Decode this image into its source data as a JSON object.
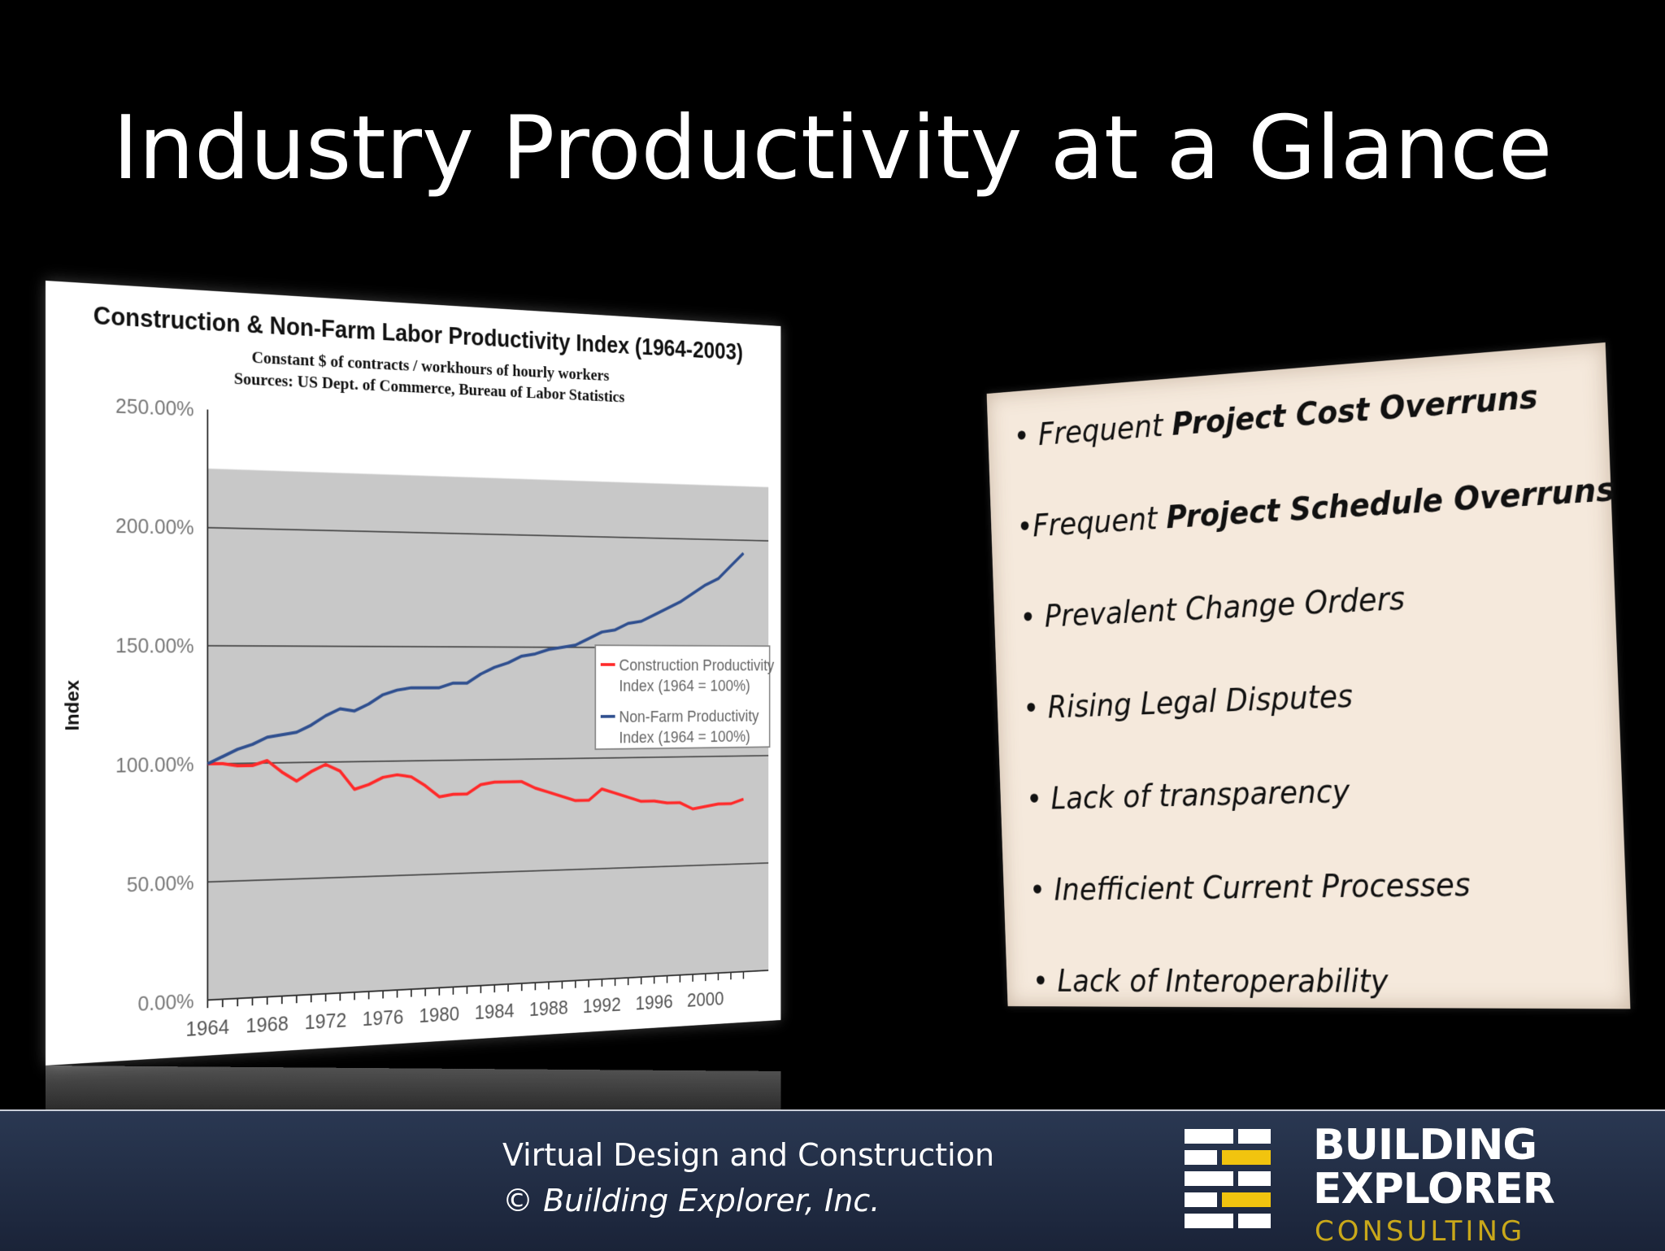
{
  "slide": {
    "title": "Industry Productivity at a Glance"
  },
  "bullets": [
    {
      "pre": "• Frequent ",
      "bold": "Project Cost Overruns",
      "post": ""
    },
    {
      "pre": "•Frequent  ",
      "bold": "Project Schedule Overruns",
      "post": ""
    },
    {
      "pre": "• Prevalent Change Orders",
      "bold": "",
      "post": ""
    },
    {
      "pre": "• Rising Legal Disputes",
      "bold": "",
      "post": ""
    },
    {
      "pre": "• Lack of transparency",
      "bold": "",
      "post": ""
    },
    {
      "pre": "• Inefficient Current Processes",
      "bold": "",
      "post": ""
    },
    {
      "pre": "• Lack of Interoperability",
      "bold": "",
      "post": ""
    }
  ],
  "footer": {
    "line1": "Virtual Design and Construction",
    "line2": "© Building Explorer, Inc.",
    "logo_word1": "BUILDING",
    "logo_word2": "EXPLORER",
    "logo_word3": "CONSULTING",
    "colors": {
      "bar": "#ffffff",
      "accent": "#f1c40f",
      "text_accent": "#c9a81a"
    }
  },
  "chart_data": {
    "type": "line",
    "title": "Construction & Non-Farm Labor Productivity Index (1964-2003)",
    "subtitle": [
      "Constant $ of contracts / workhours of hourly workers",
      "Sources: US Dept. of Commerce, Bureau of Labor Statistics"
    ],
    "ylabel": "Index",
    "xlabel": "",
    "ylim": [
      0,
      250
    ],
    "yticks": [
      "0.00%",
      "50.00%",
      "100.00%",
      "150.00%",
      "200.00%",
      "250.00%"
    ],
    "xticks": [
      "1964",
      "1968",
      "1972",
      "1976",
      "1980",
      "1984",
      "1988",
      "1992",
      "1996",
      "2000"
    ],
    "xlim": [
      1964,
      2003
    ],
    "grid": true,
    "legend_position": "right",
    "x": [
      1964,
      1965,
      1966,
      1967,
      1968,
      1969,
      1970,
      1971,
      1972,
      1973,
      1974,
      1975,
      1976,
      1977,
      1978,
      1979,
      1980,
      1981,
      1982,
      1983,
      1984,
      1985,
      1986,
      1987,
      1988,
      1989,
      1990,
      1991,
      1992,
      1993,
      1994,
      1995,
      1996,
      1997,
      1998,
      1999,
      2000,
      2001,
      2002,
      2003
    ],
    "series": [
      {
        "name": "Construction Productivity Index      (1964 = 100%)",
        "name_line1": "Construction Productivity",
        "name_line2": "Index      (1964 = 100%)",
        "color": "#ff2a2a",
        "values": [
          100,
          100,
          99,
          99,
          101,
          96,
          92,
          96,
          99,
          96,
          88,
          90,
          93,
          94,
          93,
          89,
          84,
          85,
          85,
          89,
          90,
          90,
          90,
          87,
          85,
          83,
          81,
          81,
          86,
          84,
          82,
          80,
          80,
          79,
          79,
          76,
          77,
          78,
          78,
          80
        ]
      },
      {
        "name": "Non-Farm Productivity Index      (1964 = 100%)",
        "name_line1": "Non-Farm Productivity",
        "name_line2": "Index      (1964 = 100%)",
        "color": "#2f4f8f",
        "values": [
          100,
          103,
          106,
          108,
          111,
          112,
          113,
          116,
          120,
          123,
          122,
          125,
          129,
          131,
          132,
          132,
          132,
          134,
          134,
          138,
          141,
          143,
          146,
          147,
          149,
          150,
          151,
          154,
          157,
          158,
          161,
          162,
          165,
          168,
          171,
          175,
          179,
          182,
          188,
          194
        ]
      }
    ]
  }
}
